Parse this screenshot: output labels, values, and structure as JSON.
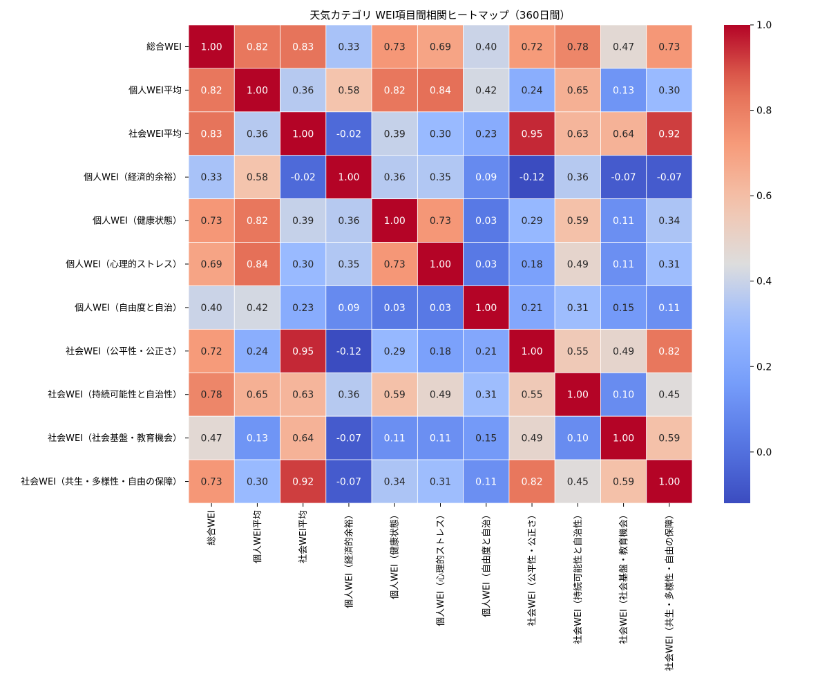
{
  "chart_data": {
    "type": "heatmap",
    "title": "天気カテゴリ WEI項目間相関ヒートマップ（360日間）",
    "labels": [
      "総合WEI",
      "個人WEI平均",
      "社会WEI平均",
      "個人WEI（経済的余裕）",
      "個人WEI（健康状態）",
      "個人WEI（心理的ストレス）",
      "個人WEI（自由度と自治）",
      "社会WEI（公平性・公正さ）",
      "社会WEI（持続可能性と自治性）",
      "社会WEI（社会基盤・教育機会）",
      "社会WEI（共生・多様性・自由の保障）"
    ],
    "values": [
      [
        1.0,
        0.82,
        0.83,
        0.33,
        0.73,
        0.69,
        0.4,
        0.72,
        0.78,
        0.47,
        0.73
      ],
      [
        0.82,
        1.0,
        0.36,
        0.58,
        0.82,
        0.84,
        0.42,
        0.24,
        0.65,
        0.13,
        0.3
      ],
      [
        0.83,
        0.36,
        1.0,
        -0.02,
        0.39,
        0.3,
        0.23,
        0.95,
        0.63,
        0.64,
        0.92
      ],
      [
        0.33,
        0.58,
        -0.02,
        1.0,
        0.36,
        0.35,
        0.09,
        -0.12,
        0.36,
        -0.07,
        -0.07
      ],
      [
        0.73,
        0.82,
        0.39,
        0.36,
        1.0,
        0.73,
        0.03,
        0.29,
        0.59,
        0.11,
        0.34
      ],
      [
        0.69,
        0.84,
        0.3,
        0.35,
        0.73,
        1.0,
        0.03,
        0.18,
        0.49,
        0.11,
        0.31
      ],
      [
        0.4,
        0.42,
        0.23,
        0.09,
        0.03,
        0.03,
        1.0,
        0.21,
        0.31,
        0.15,
        0.11
      ],
      [
        0.72,
        0.24,
        0.95,
        -0.12,
        0.29,
        0.18,
        0.21,
        1.0,
        0.55,
        0.49,
        0.82
      ],
      [
        0.78,
        0.65,
        0.63,
        0.36,
        0.59,
        0.49,
        0.31,
        0.55,
        1.0,
        0.1,
        0.45
      ],
      [
        0.47,
        0.13,
        0.64,
        -0.07,
        0.11,
        0.11,
        0.15,
        0.49,
        0.1,
        1.0,
        0.59
      ],
      [
        0.73,
        0.3,
        0.92,
        -0.07,
        0.34,
        0.31,
        0.11,
        0.82,
        0.45,
        0.59,
        1.0
      ]
    ],
    "value_range": [
      -0.12,
      1.0
    ],
    "colormap": "coolwarm",
    "colorbar": {
      "ticks": [
        0.0,
        0.2,
        0.4,
        0.6,
        0.8,
        1.0
      ],
      "tick_labels": [
        "0.0",
        "0.2",
        "0.4",
        "0.6",
        "0.8",
        "1.0"
      ]
    },
    "annotation_format": "2 decimals",
    "grid": false,
    "legend": "colorbar-right"
  },
  "colors": {
    "cell_border": "#ffffff",
    "dark_text": "#262626",
    "light_text": "#ffffff"
  }
}
